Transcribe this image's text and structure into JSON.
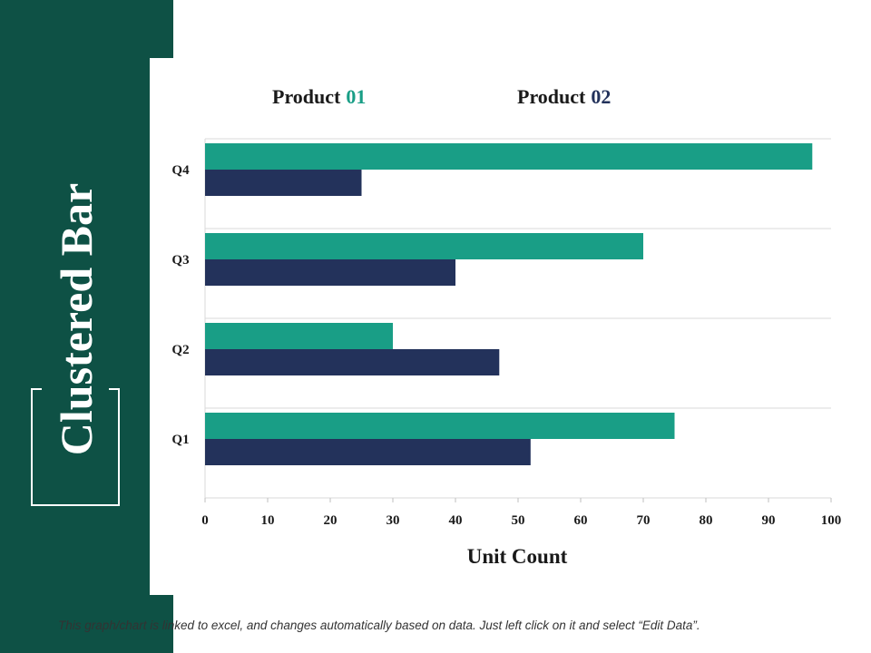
{
  "slide": {
    "title": "Clustered Bar",
    "footnote": "This graph/chart is linked to excel, and changes automatically based on data. Just left click on it and select “Edit Data”."
  },
  "legend": [
    {
      "word": "Product",
      "num": "01",
      "color": "#199e86"
    },
    {
      "word": "Product",
      "num": "02",
      "color": "#23325b"
    }
  ],
  "colors": {
    "band": "#0e5145",
    "series1": "#199e86",
    "series2": "#23325b",
    "grid": "#d9d9d9"
  },
  "chart_data": {
    "type": "bar",
    "orientation": "horizontal",
    "title": "",
    "xlabel": "Unit Count",
    "ylabel": "",
    "categories": [
      "Q4",
      "Q3",
      "Q2",
      "Q1"
    ],
    "series": [
      {
        "name": "Product 01",
        "values": [
          97,
          70,
          30,
          75
        ]
      },
      {
        "name": "Product 02",
        "values": [
          25,
          40,
          47,
          52
        ]
      }
    ],
    "xlim": [
      0,
      100
    ],
    "xticks": [
      0,
      10,
      20,
      30,
      40,
      50,
      60,
      70,
      80,
      90,
      100
    ],
    "legend_position": "top",
    "grid": true
  }
}
